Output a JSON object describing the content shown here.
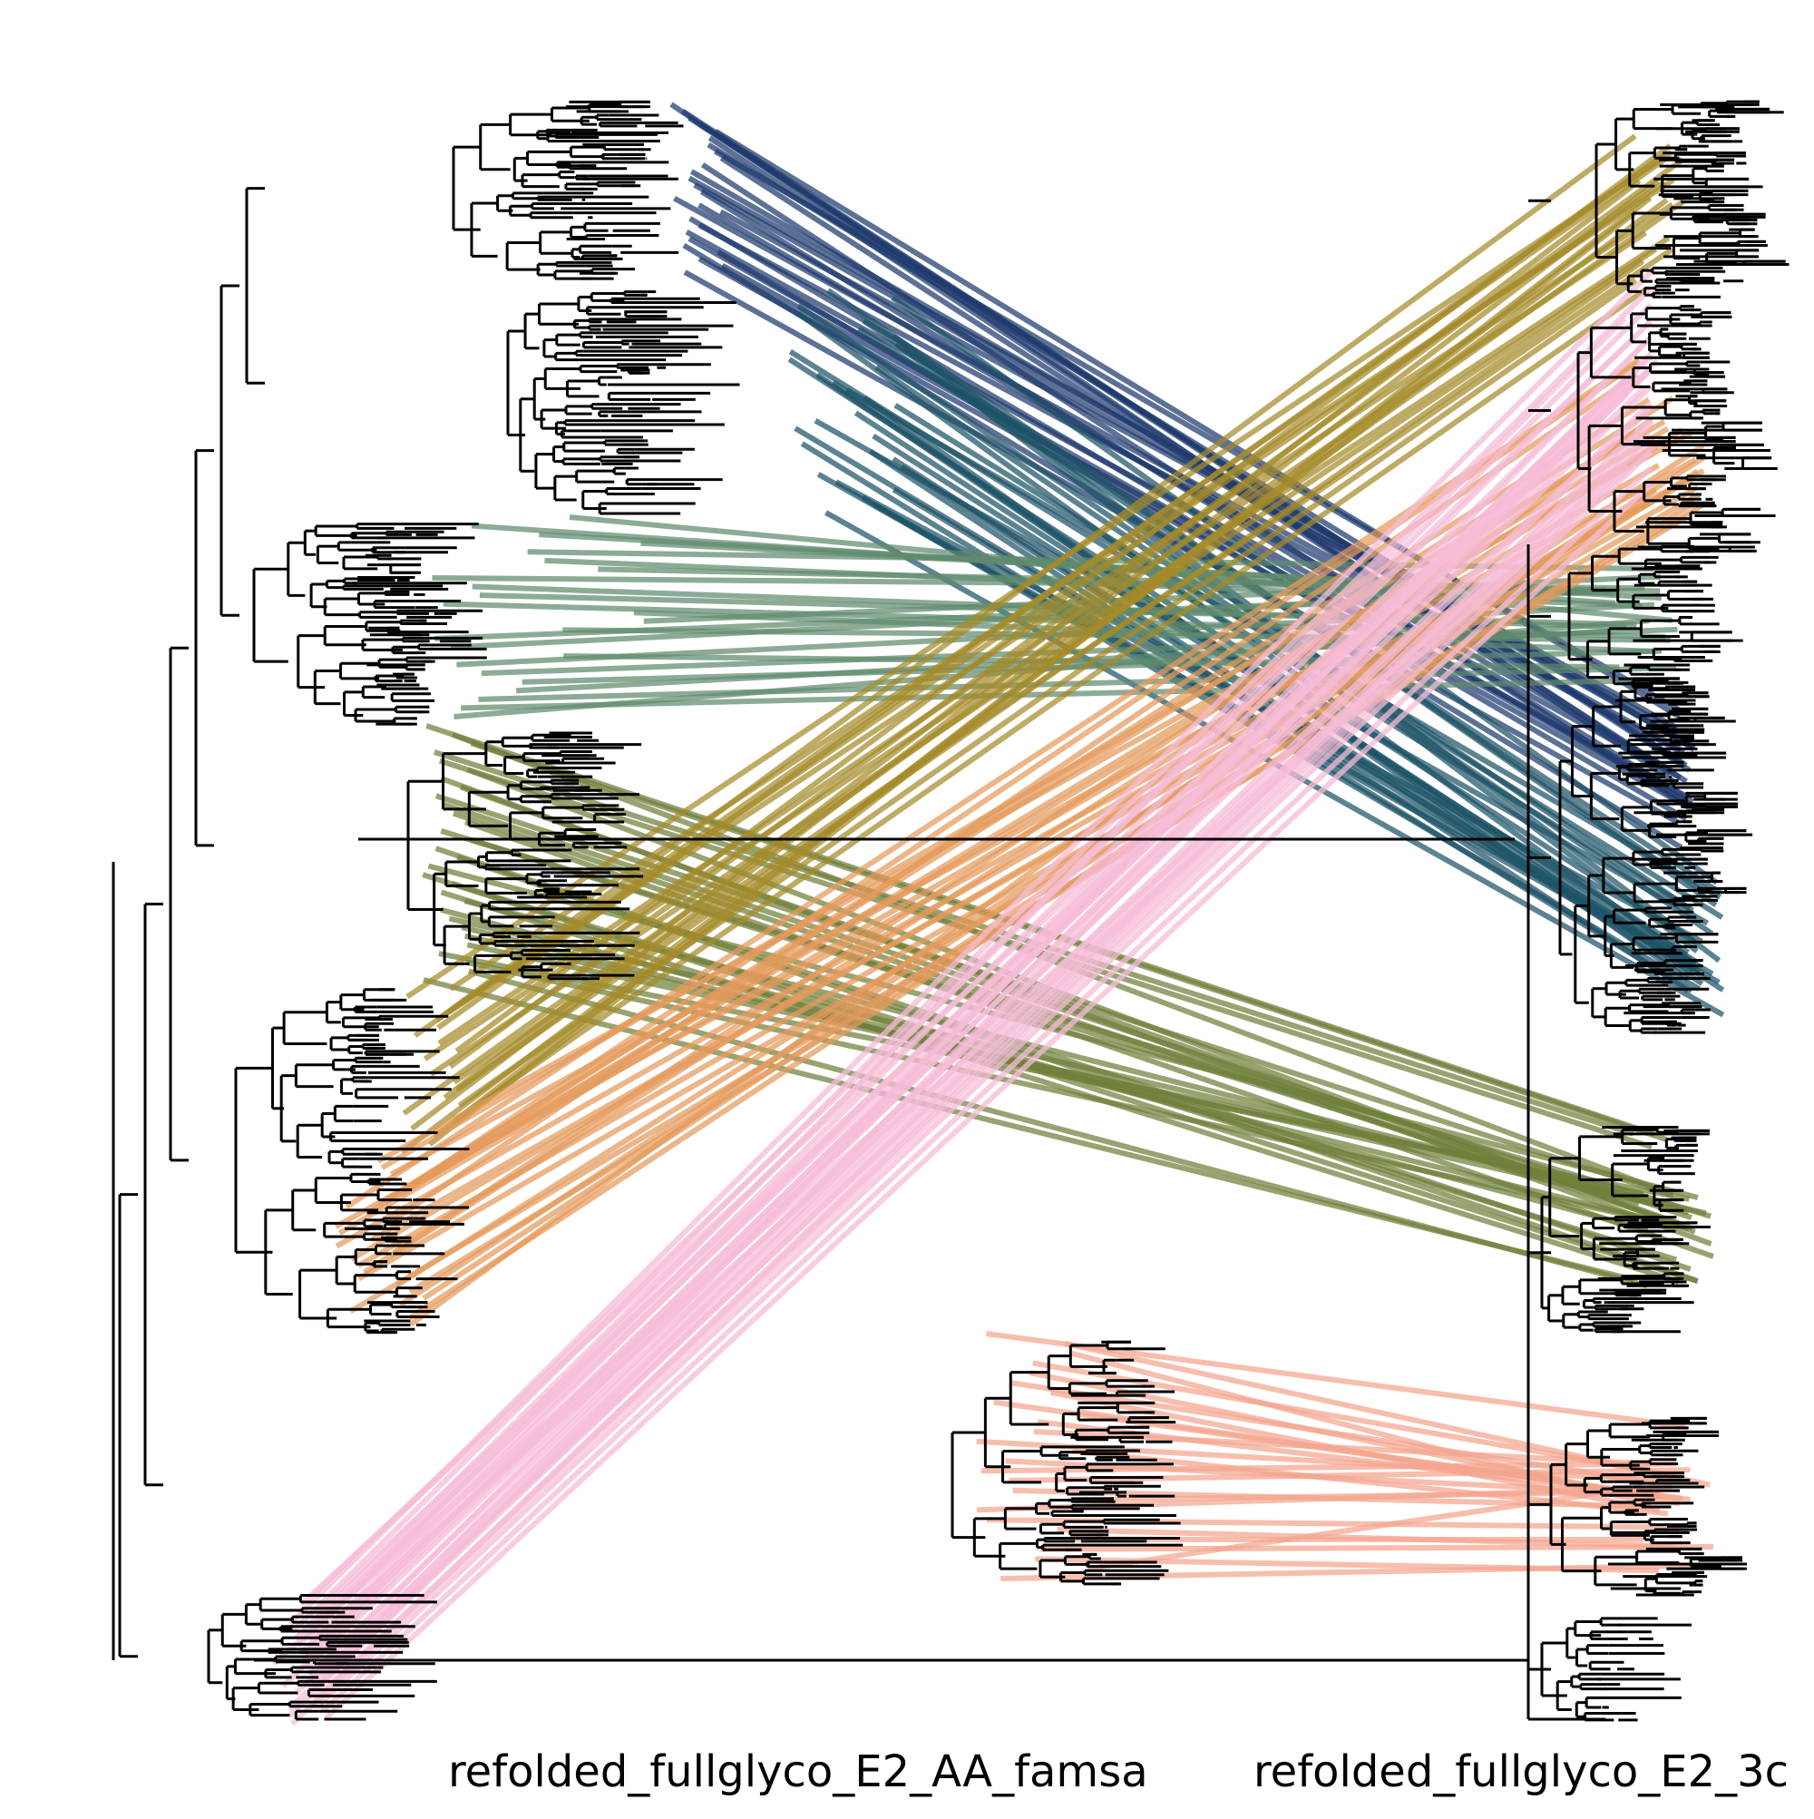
{
  "tanglegram": {
    "left_tree_label": "refolded_fullglyco_E2_AA_famsa",
    "right_tree_label": "refolded_fullglyco_E2_3c",
    "tree_color": "#000000",
    "background": "#ffffff",
    "clade_colors": {
      "navy": "#1f3a6e",
      "teal": "#1d5366",
      "sage_green": "#5f8a6e",
      "olive": "#6f7f3a",
      "mustard": "#a58a2a",
      "orange": "#e59a5c",
      "salmon": "#f4a58f",
      "pink": "#f6bcd8"
    }
  }
}
